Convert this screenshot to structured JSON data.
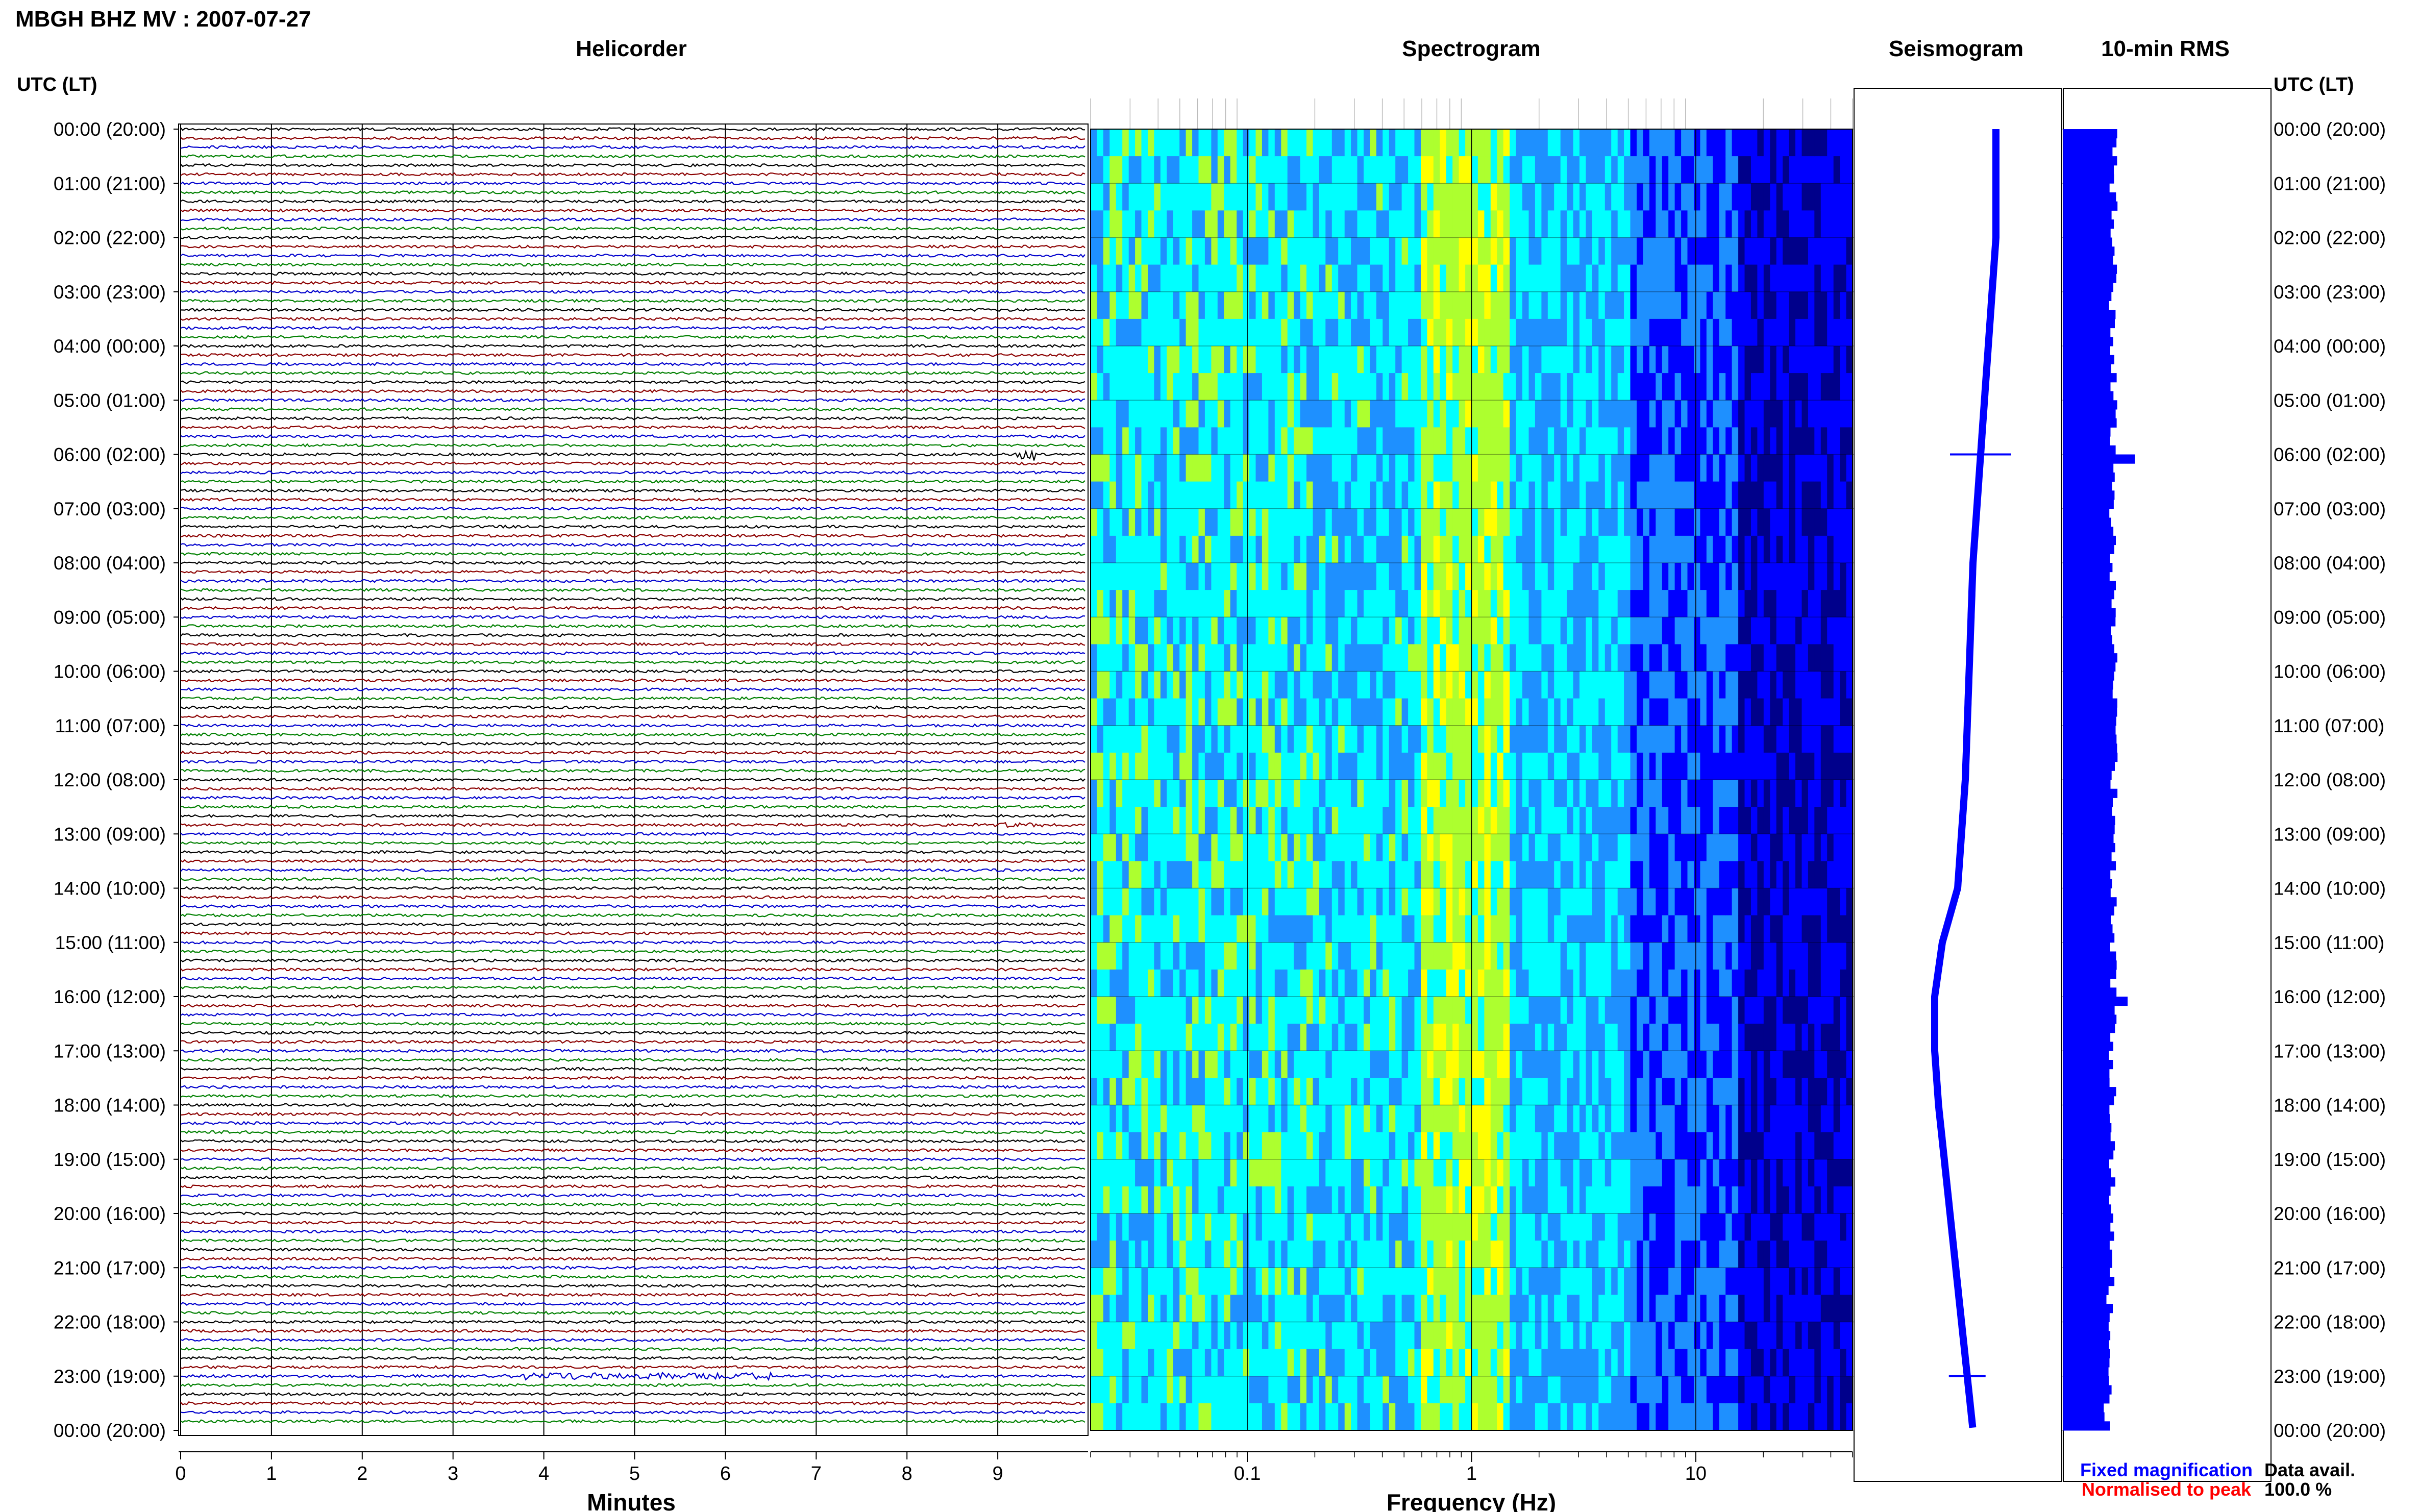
{
  "header": {
    "title": "MBGH BHZ MV : 2007-07-27",
    "time_axis_label": "UTC (LT)",
    "time_axis_label_right": "UTC (LT)"
  },
  "panels": {
    "helicorder": "Helicorder",
    "spectrogram": "Spectrogram",
    "seismogram": "Seismogram",
    "rms": "10-min RMS"
  },
  "footer": {
    "minutes_label": "Minutes",
    "frequency_label": "Frequency (Hz)",
    "legend_fixed": "Fixed magnification",
    "legend_normalised": "Normalised to peak",
    "data_avail_label": "Data avail.",
    "data_avail_value": "100.0 %"
  },
  "colors": {
    "trace_cycle": [
      "#000000",
      "#8b0000",
      "#0000cd",
      "#008000"
    ],
    "legend_fixed": "#0000ff",
    "legend_normalised": "#ff0000",
    "seismogram_trace": "#0000ff",
    "rms_bar": "#0000ff"
  },
  "chart_data": [
    {
      "type": "line",
      "name": "helicorder",
      "title": "Helicorder",
      "xlabel": "Minutes",
      "x_ticks": [
        "0",
        "1",
        "2",
        "3",
        "4",
        "5",
        "6",
        "7",
        "8",
        "9"
      ],
      "xlim": [
        0,
        10
      ],
      "rows_per_hour": 6,
      "hours": 24,
      "time_ticks": [
        "00:00 (20:00)",
        "01:00 (21:00)",
        "02:00 (22:00)",
        "03:00 (23:00)",
        "04:00 (00:00)",
        "05:00 (01:00)",
        "06:00 (02:00)",
        "07:00 (03:00)",
        "08:00 (04:00)",
        "09:00 (05:00)",
        "10:00 (06:00)",
        "11:00 (07:00)",
        "12:00 (08:00)",
        "13:00 (09:00)",
        "14:00 (10:00)",
        "15:00 (11:00)",
        "16:00 (12:00)",
        "17:00 (13:00)",
        "18:00 (14:00)",
        "19:00 (15:00)",
        "20:00 (16:00)",
        "21:00 (17:00)",
        "22:00 (18:00)",
        "23:00 (19:00)",
        "00:00 (20:00)"
      ],
      "events": [
        {
          "utc_hour": 6.0,
          "minute_start": 9.2,
          "minute_end": 9.4,
          "amplitude": 5
        },
        {
          "utc_hour": 12.8,
          "minute_start": 8.9,
          "minute_end": 9.5,
          "amplitude": 2
        },
        {
          "utc_hour": 22.95,
          "minute_start": 3.4,
          "minute_end": 6.5,
          "amplitude": 3
        }
      ],
      "grid": true
    },
    {
      "type": "heatmap",
      "name": "spectrogram",
      "title": "Spectrogram",
      "xlabel": "Frequency (Hz)",
      "x_scale": "log",
      "xlim": [
        0.02,
        50
      ],
      "x_ticks": [
        {
          "value": 0.1,
          "label": "0.1"
        },
        {
          "value": 1,
          "label": "1"
        },
        {
          "value": 10,
          "label": "10"
        }
      ],
      "colormap": [
        "#00008b",
        "#0000ff",
        "#1e90ff",
        "#00ffff",
        "#adff2f",
        "#ffff00"
      ],
      "bands_hz": [
        0.02,
        0.2,
        0.6,
        1.5,
        5,
        15,
        50
      ],
      "band_levels": [
        0.6,
        0.55,
        0.8,
        0.5,
        0.3,
        0.12
      ]
    },
    {
      "type": "line",
      "name": "seismogram",
      "title": "Seismogram",
      "y_hours": [
        0,
        2,
        4,
        6,
        8,
        10,
        12,
        14,
        15,
        16,
        17,
        18,
        20,
        22,
        24
      ],
      "offset": [
        0.5,
        0.5,
        0.4,
        0.3,
        0.2,
        0.15,
        0.1,
        0.0,
        -0.2,
        -0.3,
        -0.3,
        -0.25,
        -0.1,
        0.05,
        0.2
      ],
      "spikes": [
        {
          "utc_hour": 6.0,
          "amplitude": 1.0
        },
        {
          "utc_hour": 23.0,
          "amplitude": 0.6
        }
      ]
    },
    {
      "type": "bar",
      "name": "rms",
      "title": "10-min RMS",
      "orientation": "horizontal",
      "bin_minutes": 10,
      "base_level": 0.7,
      "peaks": [
        {
          "utc_hour": 6.0,
          "value": 1.0
        },
        {
          "utc_hour": 16.0,
          "value": 0.9
        }
      ]
    }
  ]
}
